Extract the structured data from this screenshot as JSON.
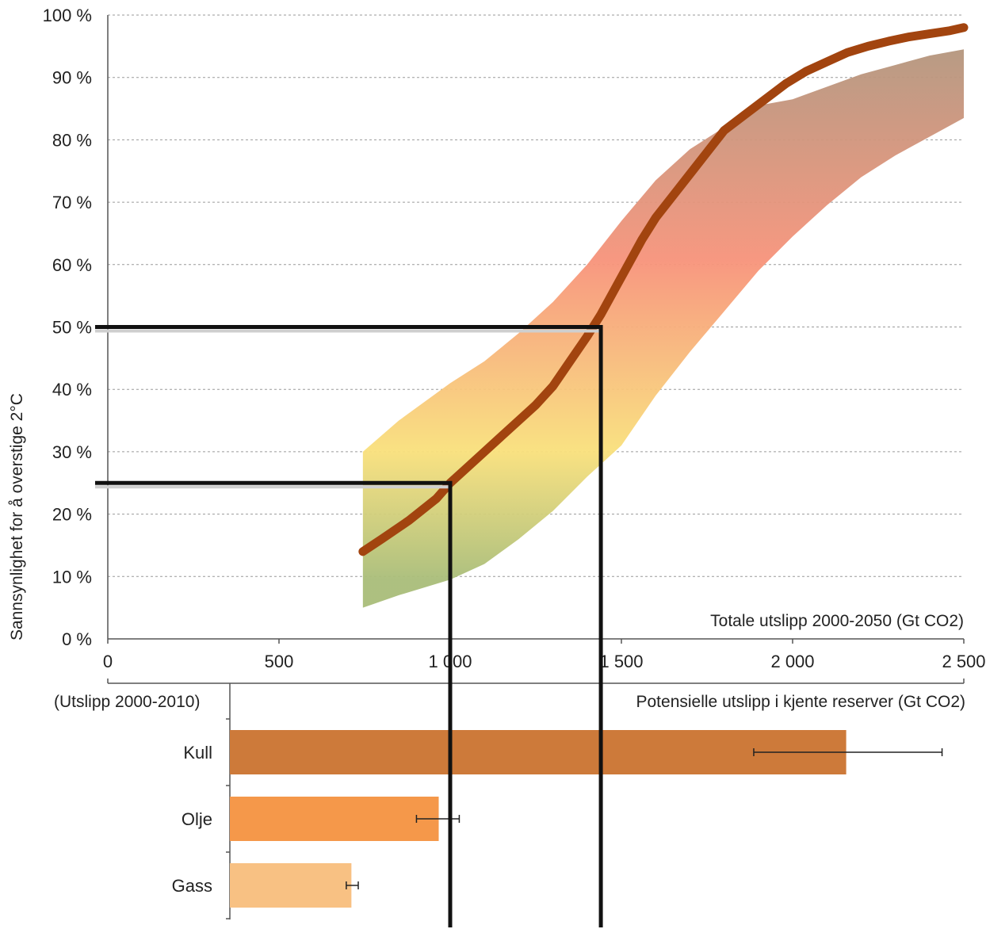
{
  "chart_data": [
    {
      "type": "line",
      "ylabel": "Sannsynlighet for å overstige 2°C",
      "xlabel": "Totale utslipp 2000-2050 (Gt CO2)",
      "xlim": [
        0,
        2500
      ],
      "ylim": [
        0,
        100
      ],
      "y_ticks": [
        "0 %",
        "10 %",
        "20 %",
        "30 %",
        "40 %",
        "50 %",
        "60 %",
        "70 %",
        "80 %",
        "90 %",
        "100 %"
      ],
      "x_ticks": [
        "0",
        "500",
        "1 000",
        "1 500",
        "2 000",
        "2 500"
      ],
      "grid": true,
      "series": [
        {
          "x": [
            745,
            800,
            880,
            960,
            1000,
            1040,
            1100,
            1150,
            1200,
            1250,
            1300,
            1350,
            1400,
            1440,
            1480,
            1520,
            1560,
            1600,
            1650,
            1700,
            1750,
            1800,
            1860,
            1920,
            1980,
            2040,
            2100,
            2160,
            2220,
            2280,
            2340,
            2400,
            2460,
            2500
          ],
          "y": [
            14,
            16,
            19,
            22.5,
            25,
            27,
            30,
            32.5,
            35,
            37.5,
            40.5,
            44.5,
            48.5,
            52,
            56,
            60,
            64,
            67.5,
            71,
            74.5,
            78,
            81.5,
            84,
            86.5,
            89,
            91,
            92.5,
            94,
            95,
            95.8,
            96.5,
            97,
            97.5,
            98
          ]
        }
      ],
      "band": {
        "x": [
          745,
          850,
          1000,
          1100,
          1200,
          1300,
          1400,
          1500,
          1600,
          1700,
          1800,
          1900,
          2000,
          2100,
          2200,
          2300,
          2400,
          2500
        ],
        "upper": [
          30,
          35,
          41,
          44.5,
          49,
          54,
          60,
          67,
          73.5,
          78.5,
          82,
          85.5,
          86.5,
          88.5,
          90.5,
          92,
          93.5,
          94.5
        ],
        "lower": [
          5,
          7,
          9.5,
          12,
          16,
          20.5,
          26,
          31,
          39,
          46,
          52.5,
          59,
          64.5,
          69.5,
          74,
          77.5,
          80.5,
          83.5
        ],
        "top_fraction": [
          30,
          35,
          41,
          44.5,
          49,
          54,
          60,
          67,
          73.5,
          78.5,
          82,
          85.5,
          86.5,
          88.5,
          90.5,
          92,
          93.5,
          94.5
        ]
      },
      "reference_lines": [
        {
          "x": 1000,
          "y": 25
        },
        {
          "x": 1440,
          "y": 50
        }
      ],
      "colors": {
        "curve": "#a2440f",
        "band_low": "#a9bd79",
        "band_mid": "#f9e07c",
        "band_high": "#f7937a",
        "band_top": "#b4967e",
        "reference": "#111111"
      }
    },
    {
      "type": "bar",
      "orientation": "horizontal",
      "categories": [
        "Kull",
        "Olje",
        "Gass"
      ],
      "values": [
        1800,
        610,
        355
      ],
      "error_low": [
        1530,
        545,
        340
      ],
      "error_high": [
        2080,
        670,
        375
      ],
      "xlabel": "Potensielle utslipp i kjente reserver (Gt CO2)",
      "offset_label": "(Utslipp 2000-2010)",
      "offset": 355,
      "colors": [
        "#cd7a3a",
        "#f5984a",
        "#f8c183"
      ]
    }
  ]
}
